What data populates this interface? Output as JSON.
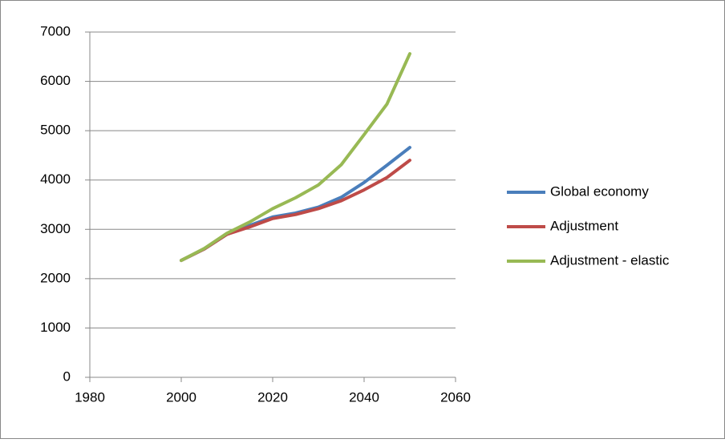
{
  "chart_data": {
    "type": "line",
    "x": [
      2000,
      2005,
      2010,
      2015,
      2020,
      2025,
      2030,
      2035,
      2040,
      2045,
      2050
    ],
    "series": [
      {
        "name": "Global economy",
        "color": "#4a7ebb",
        "values": [
          2370,
          2600,
          2900,
          3080,
          3250,
          3330,
          3450,
          3650,
          3950,
          4300,
          4660
        ]
      },
      {
        "name": "Adjustment",
        "color": "#be4b48",
        "values": [
          2370,
          2600,
          2900,
          3050,
          3220,
          3300,
          3420,
          3580,
          3800,
          4050,
          4400
        ]
      },
      {
        "name": "Adjustment - elastic",
        "color": "#98b954",
        "values": [
          2370,
          2610,
          2920,
          3150,
          3420,
          3640,
          3900,
          4310,
          4920,
          5540,
          6560
        ]
      }
    ],
    "xlim": [
      1980,
      2060
    ],
    "xticks": [
      1980,
      2000,
      2020,
      2040,
      2060
    ],
    "ylim": [
      0,
      7000
    ],
    "yticks": [
      0,
      1000,
      2000,
      3000,
      4000,
      5000,
      6000,
      7000
    ],
    "grid": true,
    "legend": "right"
  }
}
